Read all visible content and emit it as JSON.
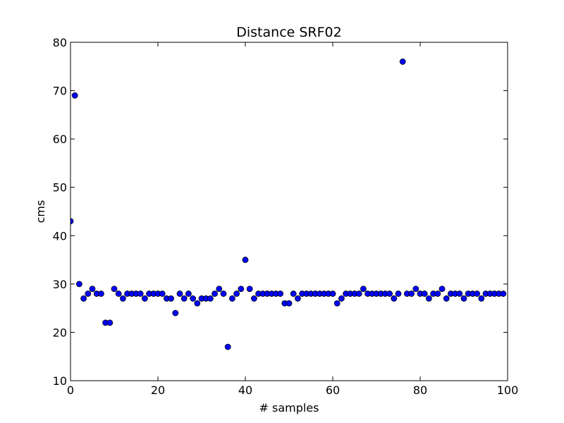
{
  "chart_data": {
    "type": "scatter",
    "title": "Distance SRF02",
    "xlabel": "# samples",
    "ylabel": "cms",
    "xlim": [
      0,
      100
    ],
    "ylim": [
      10,
      80
    ],
    "xticks": [
      0,
      20,
      40,
      60,
      80,
      100
    ],
    "yticks": [
      10,
      20,
      30,
      40,
      50,
      60,
      70,
      80
    ],
    "grid": false,
    "marker_color": "#0000ff",
    "marker_edge_color": "#000000",
    "series": [
      {
        "x": [
          0,
          1,
          2,
          3,
          4,
          5,
          6,
          7,
          8,
          9,
          10,
          11,
          12,
          13,
          14,
          15,
          16,
          17,
          18,
          19,
          20,
          21,
          22,
          23,
          24,
          25,
          26,
          27,
          28,
          29,
          30,
          31,
          32,
          33,
          34,
          35,
          36,
          37,
          38,
          39,
          40,
          41,
          42,
          43,
          44,
          45,
          46,
          47,
          48,
          49,
          50,
          51,
          52,
          53,
          54,
          55,
          56,
          57,
          58,
          59,
          60,
          61,
          62,
          63,
          64,
          65,
          66,
          67,
          68,
          69,
          70,
          71,
          72,
          73,
          74,
          75,
          76,
          77,
          78,
          79,
          80,
          81,
          82,
          83,
          84,
          85,
          86,
          87,
          88,
          89,
          90,
          91,
          92,
          93,
          94,
          95,
          96,
          97,
          98,
          99
        ],
        "y": [
          43,
          69,
          30,
          27,
          28,
          29,
          28,
          28,
          22,
          22,
          29,
          28,
          27,
          28,
          28,
          28,
          28,
          27,
          28,
          28,
          28,
          28,
          27,
          27,
          24,
          28,
          27,
          28,
          27,
          26,
          27,
          27,
          27,
          28,
          29,
          28,
          17,
          27,
          28,
          29,
          35,
          29,
          27,
          28,
          28,
          28,
          28,
          28,
          28,
          26,
          26,
          28,
          27,
          28,
          28,
          28,
          28,
          28,
          28,
          28,
          28,
          26,
          27,
          28,
          28,
          28,
          28,
          29,
          28,
          28,
          28,
          28,
          28,
          28,
          27,
          28,
          76,
          28,
          28,
          29,
          28,
          28,
          27,
          28,
          28,
          29,
          27,
          28,
          28,
          28,
          27,
          28,
          28,
          28,
          27,
          28,
          28,
          28,
          28,
          28
        ]
      }
    ]
  }
}
